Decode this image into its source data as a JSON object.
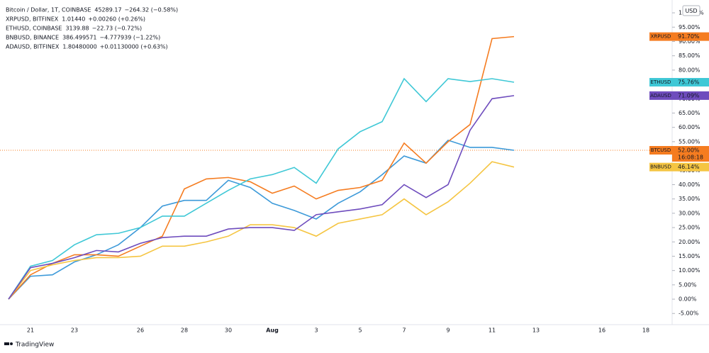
{
  "chart_data": {
    "type": "line",
    "categories": [
      null,
      "21",
      null,
      "23",
      null,
      null,
      "26",
      null,
      "28",
      null,
      "30",
      null,
      "Aug",
      null,
      "3",
      null,
      "5",
      null,
      "7",
      null,
      "9",
      null,
      "11",
      null,
      "13",
      null,
      null,
      "16",
      null,
      "18"
    ],
    "ylim": [
      -8.9,
      102.5
    ],
    "yticks": [
      {
        "value": -5,
        "label": "-5.00%"
      },
      {
        "value": 0,
        "label": "0.00%"
      },
      {
        "value": 5,
        "label": "5.00%"
      },
      {
        "value": 10,
        "label": "10.00%"
      },
      {
        "value": 15,
        "label": "15.00%"
      },
      {
        "value": 20,
        "label": "20.00%"
      },
      {
        "value": 25,
        "label": "25.00%"
      },
      {
        "value": 30,
        "label": "30.00%"
      },
      {
        "value": 35,
        "label": "35.00%"
      },
      {
        "value": 40,
        "label": "40.00%"
      },
      {
        "value": 45,
        "label": "45.00%"
      },
      {
        "value": 50,
        "label": "50.00%"
      },
      {
        "value": 55,
        "label": "55.00%"
      },
      {
        "value": 60,
        "label": "60.00%"
      },
      {
        "value": 65,
        "label": "65.00%"
      },
      {
        "value": 70,
        "label": "70.00%"
      },
      {
        "value": 75,
        "label": "75.00%"
      },
      {
        "value": 80,
        "label": "80.00%"
      },
      {
        "value": 85,
        "label": "85.00%"
      },
      {
        "value": 90,
        "label": "90.00%"
      },
      {
        "value": 95,
        "label": "95.00%"
      },
      {
        "value": 100,
        "label": "100.00%"
      }
    ],
    "currency": "USD",
    "watermark": "TradingView",
    "countdown": "16:08:18",
    "series": [
      {
        "name": "Bitcoin / Dollar, 1T, COINBASE",
        "last": "45289.17",
        "change": "−264.32 (−0.58%)",
        "color": "#3d9ad9",
        "tag": "BTCUSD",
        "tag_color": "#f57c20",
        "end_label": "52.00%",
        "values": [
          0,
          8,
          8.5,
          13,
          15.5,
          19,
          25,
          32.5,
          34.5,
          34.5,
          41.5,
          39,
          33.5,
          31,
          28,
          33.5,
          37.5,
          43.5,
          50,
          47.5,
          55.5,
          53,
          53,
          52,
          null,
          null,
          null,
          null,
          null,
          null
        ]
      },
      {
        "name": "XRPUSD, BITFINEX",
        "last": "1.01440",
        "change": "+0.00260 (+0.26%)",
        "color": "#f57c20",
        "tag": "XRPUSD",
        "tag_color": "#f57c20",
        "end_label": "91.70%",
        "values": [
          0,
          8.5,
          12.5,
          15.5,
          15.5,
          15,
          18.5,
          22,
          38.5,
          42,
          42.5,
          41,
          37,
          39.5,
          35,
          38,
          39,
          41.5,
          54.5,
          47.5,
          55,
          61,
          91,
          91.7,
          null,
          null,
          null,
          null,
          null,
          null
        ]
      },
      {
        "name": "ETHUSD, COINBASE",
        "last": "3139.88",
        "change": "−22.73 (−0.72%)",
        "color": "#3fc8d6",
        "tag": "ETHUSD",
        "tag_color": "#3fc8d6",
        "end_label": "75.76%",
        "values": [
          0,
          11.5,
          13.5,
          19,
          22.5,
          23,
          25,
          29,
          29,
          33.5,
          38,
          42,
          43.5,
          46,
          40.5,
          52.5,
          58.5,
          62,
          77,
          69,
          77,
          76,
          77,
          75.76,
          null,
          null,
          null,
          null,
          null,
          null
        ]
      },
      {
        "name": "BNBUSD, BINANCE",
        "last": "386.499571",
        "change": "−4.777939 (−1.22%)",
        "color": "#f5c542",
        "tag": "BNBUSD",
        "tag_color": "#f5c542",
        "end_label": "46.14%",
        "values": [
          0,
          10,
          12,
          13.5,
          14.5,
          14.5,
          15,
          18.5,
          18.5,
          20,
          22,
          26,
          26,
          25,
          22,
          26.5,
          28,
          29.5,
          35,
          29.5,
          34,
          40.5,
          48,
          46.14,
          null,
          null,
          null,
          null,
          null,
          null
        ]
      },
      {
        "name": "ADAUSD, BITFINEX",
        "last": "1.80480000",
        "change": "+0.01130000 (+0.63%)",
        "color": "#6e4cbd",
        "tag": "ADAUSD",
        "tag_color": "#6e4cbd",
        "end_label": "71.09%",
        "values": [
          0,
          11,
          12.5,
          14.5,
          17,
          16.5,
          19.5,
          21.5,
          22,
          22,
          24.5,
          25,
          25,
          24,
          29.5,
          30.5,
          31.5,
          33,
          40,
          35.5,
          40,
          59,
          70,
          71.09,
          null,
          null,
          null,
          null,
          null,
          null
        ]
      }
    ]
  }
}
